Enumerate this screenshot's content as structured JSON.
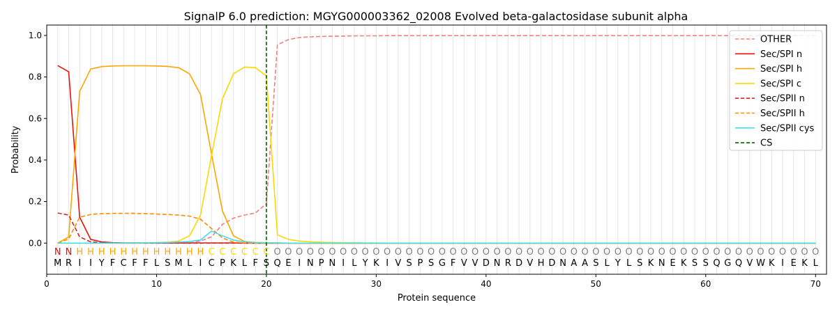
{
  "chart_data": {
    "type": "line",
    "title": "SignalP 6.0 prediction: MGYG000003362_02008 Evolved beta-galactosidase subunit alpha",
    "xlabel": "Protein sequence",
    "ylabel": "Probability",
    "xlim": [
      0,
      71
    ],
    "ylim": [
      -0.15,
      1.05
    ],
    "xticks": [
      0,
      10,
      20,
      30,
      40,
      50,
      60,
      70
    ],
    "yticks": [
      0.0,
      0.2,
      0.4,
      0.6,
      0.8,
      1.0
    ],
    "ytick_labels": [
      "0.0",
      "0.2",
      "0.4",
      "0.6",
      "0.8",
      "1.0"
    ],
    "grid": "vertical lines at every position",
    "legend_position": "top-right",
    "sequence": [
      "M",
      "R",
      "I",
      "I",
      "Y",
      "F",
      "C",
      "F",
      "F",
      "L",
      "S",
      "M",
      "L",
      "I",
      "C",
      "P",
      "K",
      "L",
      "F",
      "S",
      "Q",
      "E",
      "I",
      "N",
      "P",
      "N",
      "I",
      "L",
      "Y",
      "K",
      "I",
      "V",
      "S",
      "P",
      "S",
      "G",
      "F",
      "V",
      "V",
      "D",
      "N",
      "R",
      "D",
      "V",
      "H",
      "D",
      "N",
      "A",
      "A",
      "S",
      "L",
      "Y",
      "L",
      "S",
      "K",
      "N",
      "E",
      "K",
      "S",
      "S",
      "Q",
      "G",
      "Q",
      "V",
      "W",
      "K",
      "I",
      "E",
      "K",
      "L"
    ],
    "region_labels": [
      "N",
      "N",
      "H",
      "H",
      "H",
      "H",
      "H",
      "H",
      "H",
      "H",
      "H",
      "H",
      "H",
      "H",
      "C",
      "C",
      "C",
      "C",
      "C",
      "C",
      "O",
      "O",
      "O",
      "O",
      "O",
      "O",
      "O",
      "O",
      "O",
      "O",
      "O",
      "O",
      "O",
      "O",
      "O",
      "O",
      "O",
      "O",
      "O",
      "O",
      "O",
      "O",
      "O",
      "O",
      "O",
      "O",
      "O",
      "O",
      "O",
      "O",
      "O",
      "O",
      "O",
      "O",
      "O",
      "O",
      "O",
      "O",
      "O",
      "O",
      "O",
      "O",
      "O",
      "O",
      "O",
      "O",
      "O",
      "O",
      "O",
      "O"
    ],
    "region_colors": {
      "N": "#ff0000",
      "H": "#ffa500",
      "C": "#ffd700",
      "O": "#808080"
    },
    "cleavage_site": 20,
    "series": [
      {
        "name": "OTHER",
        "color": "#f08080",
        "dash": "dashed",
        "values": [
          0.0,
          0.0,
          0.0,
          0.0,
          0.0,
          0.0,
          0.0,
          0.0,
          0.0,
          0.0,
          0.0,
          0.0,
          0.0,
          0.01,
          0.03,
          0.09,
          0.12,
          0.135,
          0.145,
          0.19,
          0.955,
          0.98,
          0.99,
          0.993,
          0.995,
          0.996,
          0.997,
          0.998,
          0.998,
          0.998,
          0.999,
          0.999,
          0.999,
          0.999,
          0.999,
          0.999,
          0.999,
          0.999,
          0.999,
          0.999,
          0.999,
          0.999,
          0.999,
          0.999,
          0.999,
          0.999,
          0.999,
          0.999,
          0.999,
          0.999,
          0.999,
          0.999,
          0.999,
          0.999,
          0.999,
          0.999,
          0.999,
          0.999,
          0.999,
          0.999,
          0.999,
          0.999,
          0.999,
          0.999,
          0.999,
          0.999,
          0.999,
          0.999,
          0.999,
          0.999
        ]
      },
      {
        "name": "Sec/SPI n",
        "color": "#e8120c",
        "dash": "solid",
        "values": [
          0.855,
          0.825,
          0.125,
          0.018,
          0.006,
          0.002,
          0.001,
          0.001,
          0.001,
          0.001,
          0.001,
          0.001,
          0.001,
          0.001,
          0.001,
          0.001,
          0.001,
          0.0,
          0.0,
          0.0,
          0.0,
          0.0,
          0.0,
          0.0,
          0.0,
          0.0,
          0.0,
          0.0,
          0.0,
          0.0,
          0.0,
          0.0,
          0.0,
          0.0,
          0.0,
          0.0,
          0.0,
          0.0,
          0.0,
          0.0,
          0.0,
          0.0,
          0.0,
          0.0,
          0.0,
          0.0,
          0.0,
          0.0,
          0.0,
          0.0,
          0.0,
          0.0,
          0.0,
          0.0,
          0.0,
          0.0,
          0.0,
          0.0,
          0.0,
          0.0,
          0.0,
          0.0,
          0.0,
          0.0,
          0.0,
          0.0,
          0.0,
          0.0,
          0.0,
          0.0
        ]
      },
      {
        "name": "Sec/SPI h",
        "color": "#ffa500",
        "dash": "solid",
        "values": [
          0.0,
          0.03,
          0.73,
          0.838,
          0.85,
          0.853,
          0.854,
          0.854,
          0.854,
          0.853,
          0.851,
          0.845,
          0.815,
          0.715,
          0.43,
          0.155,
          0.035,
          0.008,
          0.003,
          0.001,
          0.001,
          0.0,
          0.0,
          0.0,
          0.0,
          0.0,
          0.0,
          0.0,
          0.0,
          0.0,
          0.0,
          0.0,
          0.0,
          0.0,
          0.0,
          0.0,
          0.0,
          0.0,
          0.0,
          0.0,
          0.0,
          0.0,
          0.0,
          0.0,
          0.0,
          0.0,
          0.0,
          0.0,
          0.0,
          0.0,
          0.0,
          0.0,
          0.0,
          0.0,
          0.0,
          0.0,
          0.0,
          0.0,
          0.0,
          0.0,
          0.0,
          0.0,
          0.0,
          0.0,
          0.0,
          0.0,
          0.0,
          0.0,
          0.0,
          0.0
        ]
      },
      {
        "name": "Sec/SPI c",
        "color": "#ffd700",
        "dash": "solid",
        "values": [
          0.0,
          0.0,
          0.0,
          0.0,
          0.0,
          0.0,
          0.0,
          0.0,
          0.001,
          0.002,
          0.004,
          0.01,
          0.035,
          0.135,
          0.42,
          0.695,
          0.815,
          0.848,
          0.845,
          0.805,
          0.04,
          0.018,
          0.01,
          0.006,
          0.004,
          0.003,
          0.002,
          0.002,
          0.001,
          0.001,
          0.0,
          0.0,
          0.0,
          0.0,
          0.0,
          0.0,
          0.0,
          0.0,
          0.0,
          0.0,
          0.0,
          0.0,
          0.0,
          0.0,
          0.0,
          0.0,
          0.0,
          0.0,
          0.0,
          0.0,
          0.0,
          0.0,
          0.0,
          0.0,
          0.0,
          0.0,
          0.0,
          0.0,
          0.0,
          0.0,
          0.0,
          0.0,
          0.0,
          0.0,
          0.0,
          0.0,
          0.0,
          0.0,
          0.0,
          0.0
        ]
      },
      {
        "name": "Sec/SPII n",
        "color": "#d62728",
        "dash": "dashed",
        "values": [
          0.145,
          0.135,
          0.03,
          0.006,
          0.002,
          0.001,
          0.0,
          0.0,
          0.0,
          0.0,
          0.0,
          0.0,
          0.0,
          0.0,
          0.0,
          0.0,
          0.0,
          0.0,
          0.0,
          0.0,
          0.0,
          0.0,
          0.0,
          0.0,
          0.0,
          0.0,
          0.0,
          0.0,
          0.0,
          0.0,
          0.0,
          0.0,
          0.0,
          0.0,
          0.0,
          0.0,
          0.0,
          0.0,
          0.0,
          0.0,
          0.0,
          0.0,
          0.0,
          0.0,
          0.0,
          0.0,
          0.0,
          0.0,
          0.0,
          0.0,
          0.0,
          0.0,
          0.0,
          0.0,
          0.0,
          0.0,
          0.0,
          0.0,
          0.0,
          0.0,
          0.0,
          0.0,
          0.0,
          0.0,
          0.0,
          0.0,
          0.0,
          0.0,
          0.0,
          0.0
        ]
      },
      {
        "name": "Sec/SPII h",
        "color": "#ff8c00",
        "dash": "dashed",
        "values": [
          0.0,
          0.02,
          0.125,
          0.138,
          0.142,
          0.143,
          0.143,
          0.143,
          0.142,
          0.14,
          0.138,
          0.135,
          0.13,
          0.115,
          0.07,
          0.025,
          0.005,
          0.001,
          0.0,
          0.0,
          0.0,
          0.0,
          0.0,
          0.0,
          0.0,
          0.0,
          0.0,
          0.0,
          0.0,
          0.0,
          0.0,
          0.0,
          0.0,
          0.0,
          0.0,
          0.0,
          0.0,
          0.0,
          0.0,
          0.0,
          0.0,
          0.0,
          0.0,
          0.0,
          0.0,
          0.0,
          0.0,
          0.0,
          0.0,
          0.0,
          0.0,
          0.0,
          0.0,
          0.0,
          0.0,
          0.0,
          0.0,
          0.0,
          0.0,
          0.0,
          0.0,
          0.0,
          0.0,
          0.0,
          0.0,
          0.0,
          0.0,
          0.0,
          0.0,
          0.0
        ]
      },
      {
        "name": "Sec/SPII cys",
        "color": "#40e0f0",
        "dash": "solid",
        "values": [
          0.0,
          0.0,
          0.0,
          0.0,
          0.0,
          0.0,
          0.0,
          0.0,
          0.001,
          0.002,
          0.003,
          0.005,
          0.008,
          0.015,
          0.058,
          0.035,
          0.015,
          0.006,
          0.003,
          0.002,
          0.001,
          0.0,
          0.0,
          0.0,
          0.0,
          0.0,
          0.0,
          0.0,
          0.0,
          0.0,
          0.0,
          0.0,
          0.0,
          0.0,
          0.0,
          0.0,
          0.0,
          0.0,
          0.0,
          0.0,
          0.0,
          0.0,
          0.0,
          0.0,
          0.0,
          0.0,
          0.0,
          0.0,
          0.0,
          0.0,
          0.0,
          0.0,
          0.0,
          0.0,
          0.0,
          0.0,
          0.0,
          0.0,
          0.0,
          0.0,
          0.0,
          0.0,
          0.0,
          0.0,
          0.0,
          0.0,
          0.0,
          0.0,
          0.0,
          0.0
        ]
      }
    ],
    "legend": [
      {
        "name": "OTHER",
        "color": "#f08080",
        "dash": "dashed"
      },
      {
        "name": "Sec/SPI n",
        "color": "#e8120c",
        "dash": "solid"
      },
      {
        "name": "Sec/SPI h",
        "color": "#ffa500",
        "dash": "solid"
      },
      {
        "name": "Sec/SPI c",
        "color": "#ffd700",
        "dash": "solid"
      },
      {
        "name": "Sec/SPII n",
        "color": "#d62728",
        "dash": "dashed"
      },
      {
        "name": "Sec/SPII h",
        "color": "#ff8c00",
        "dash": "dashed"
      },
      {
        "name": "Sec/SPII cys",
        "color": "#40e0f0",
        "dash": "solid"
      },
      {
        "name": "CS",
        "color": "#006400",
        "dash": "dashed"
      }
    ]
  }
}
